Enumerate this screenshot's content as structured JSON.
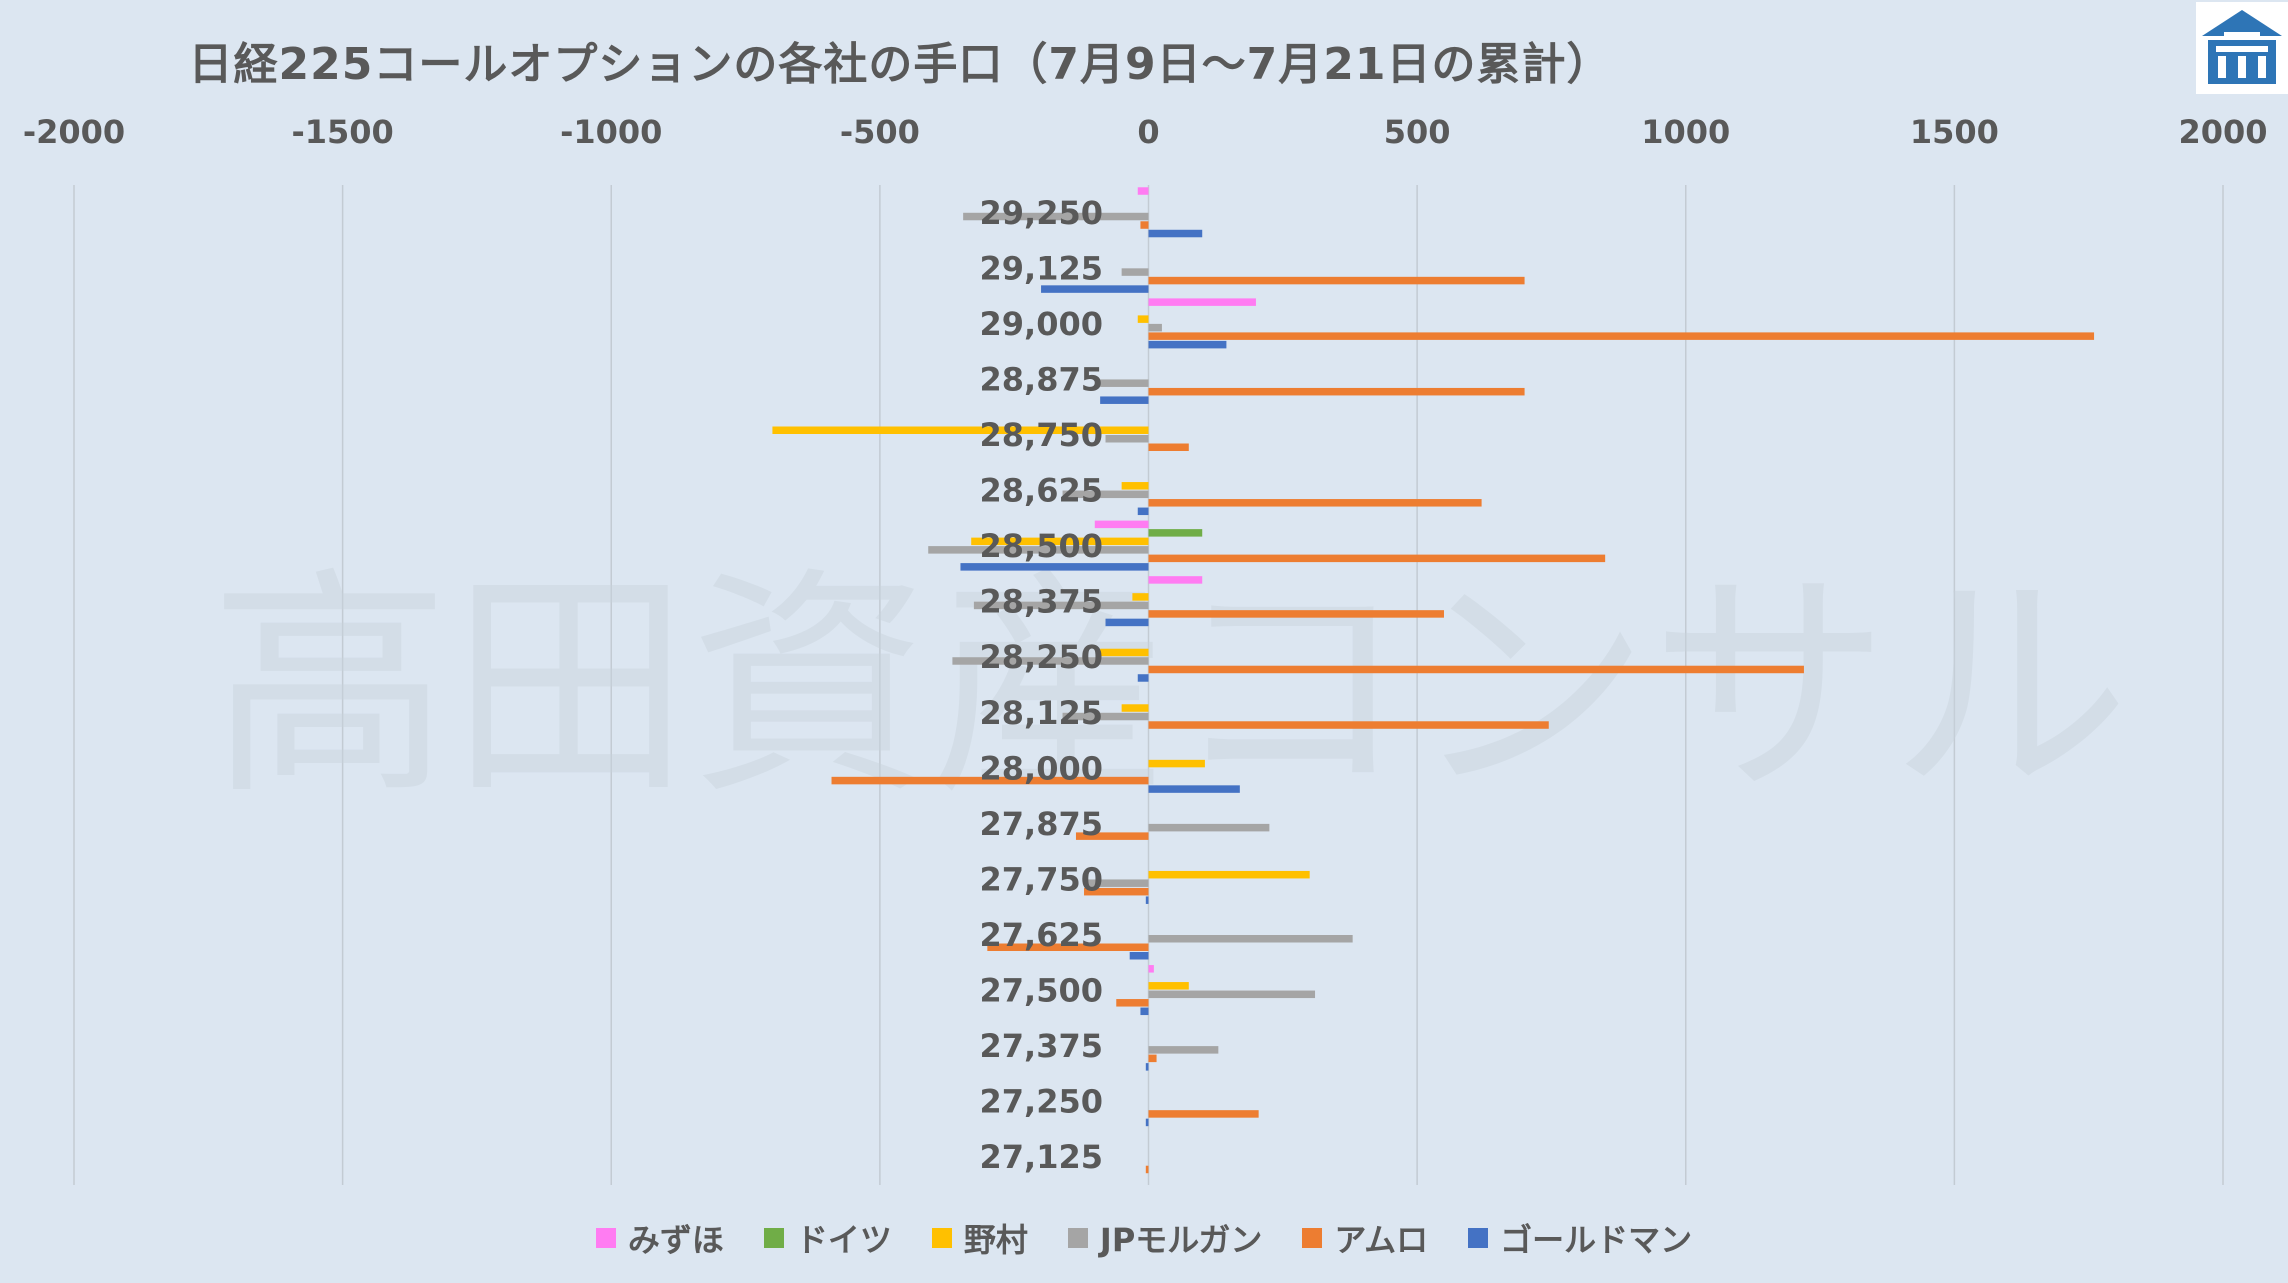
{
  "chart_data": {
    "type": "bar",
    "orientation": "horizontal",
    "title": "日経225コールオプションの各社の手口（7月9日～7月21日の累計）",
    "xlim": [
      -2000,
      2000
    ],
    "x_ticks": [
      "-2000",
      "-1500",
      "-1000",
      "-500",
      "0",
      "500",
      "1000",
      "1500",
      "2000"
    ],
    "x_axis_position": "top",
    "grid": true,
    "legend_position": "bottom",
    "categories": [
      "29,250",
      "29,125",
      "29,000",
      "28,875",
      "28,750",
      "28,625",
      "28,500",
      "28,375",
      "28,250",
      "28,125",
      "28,000",
      "27,875",
      "27,750",
      "27,625",
      "27,500",
      "27,375",
      "27,250",
      "27,125"
    ],
    "series": [
      {
        "name": "みずほ",
        "color": "#ff7cf2",
        "values": [
          -20,
          0,
          200,
          0,
          0,
          0,
          -100,
          100,
          0,
          0,
          0,
          0,
          0,
          0,
          10,
          0,
          0,
          0
        ]
      },
      {
        "name": "ドイツ",
        "color": "#70ad47",
        "values": [
          0,
          0,
          0,
          0,
          0,
          0,
          100,
          0,
          0,
          0,
          0,
          0,
          0,
          0,
          0,
          0,
          0,
          0
        ]
      },
      {
        "name": "野村",
        "color": "#ffc000",
        "values": [
          0,
          0,
          -20,
          0,
          -700,
          -50,
          -330,
          -30,
          -90,
          -50,
          105,
          0,
          300,
          0,
          75,
          0,
          0,
          0
        ]
      },
      {
        "name": "JPモルガン",
        "color": "#a5a5a5",
        "values": [
          -345,
          -50,
          25,
          -90,
          -80,
          -160,
          -410,
          -325,
          -365,
          -160,
          0,
          225,
          -120,
          380,
          310,
          130,
          0,
          0
        ]
      },
      {
        "name": "アムロ",
        "color": "#ed7d31",
        "values": [
          -15,
          700,
          1760,
          700,
          75,
          620,
          850,
          550,
          1220,
          745,
          -590,
          -135,
          -120,
          -300,
          -60,
          15,
          205,
          -5
        ]
      },
      {
        "name": "ゴールドマン",
        "color": "#4472c4",
        "values": [
          100,
          -200,
          145,
          -90,
          0,
          -20,
          -350,
          -80,
          -20,
          0,
          170,
          0,
          -5,
          -35,
          -15,
          -5,
          -5,
          0
        ]
      }
    ]
  },
  "watermark": "高田資産コンサル",
  "logo_icon": "building-logo-icon"
}
